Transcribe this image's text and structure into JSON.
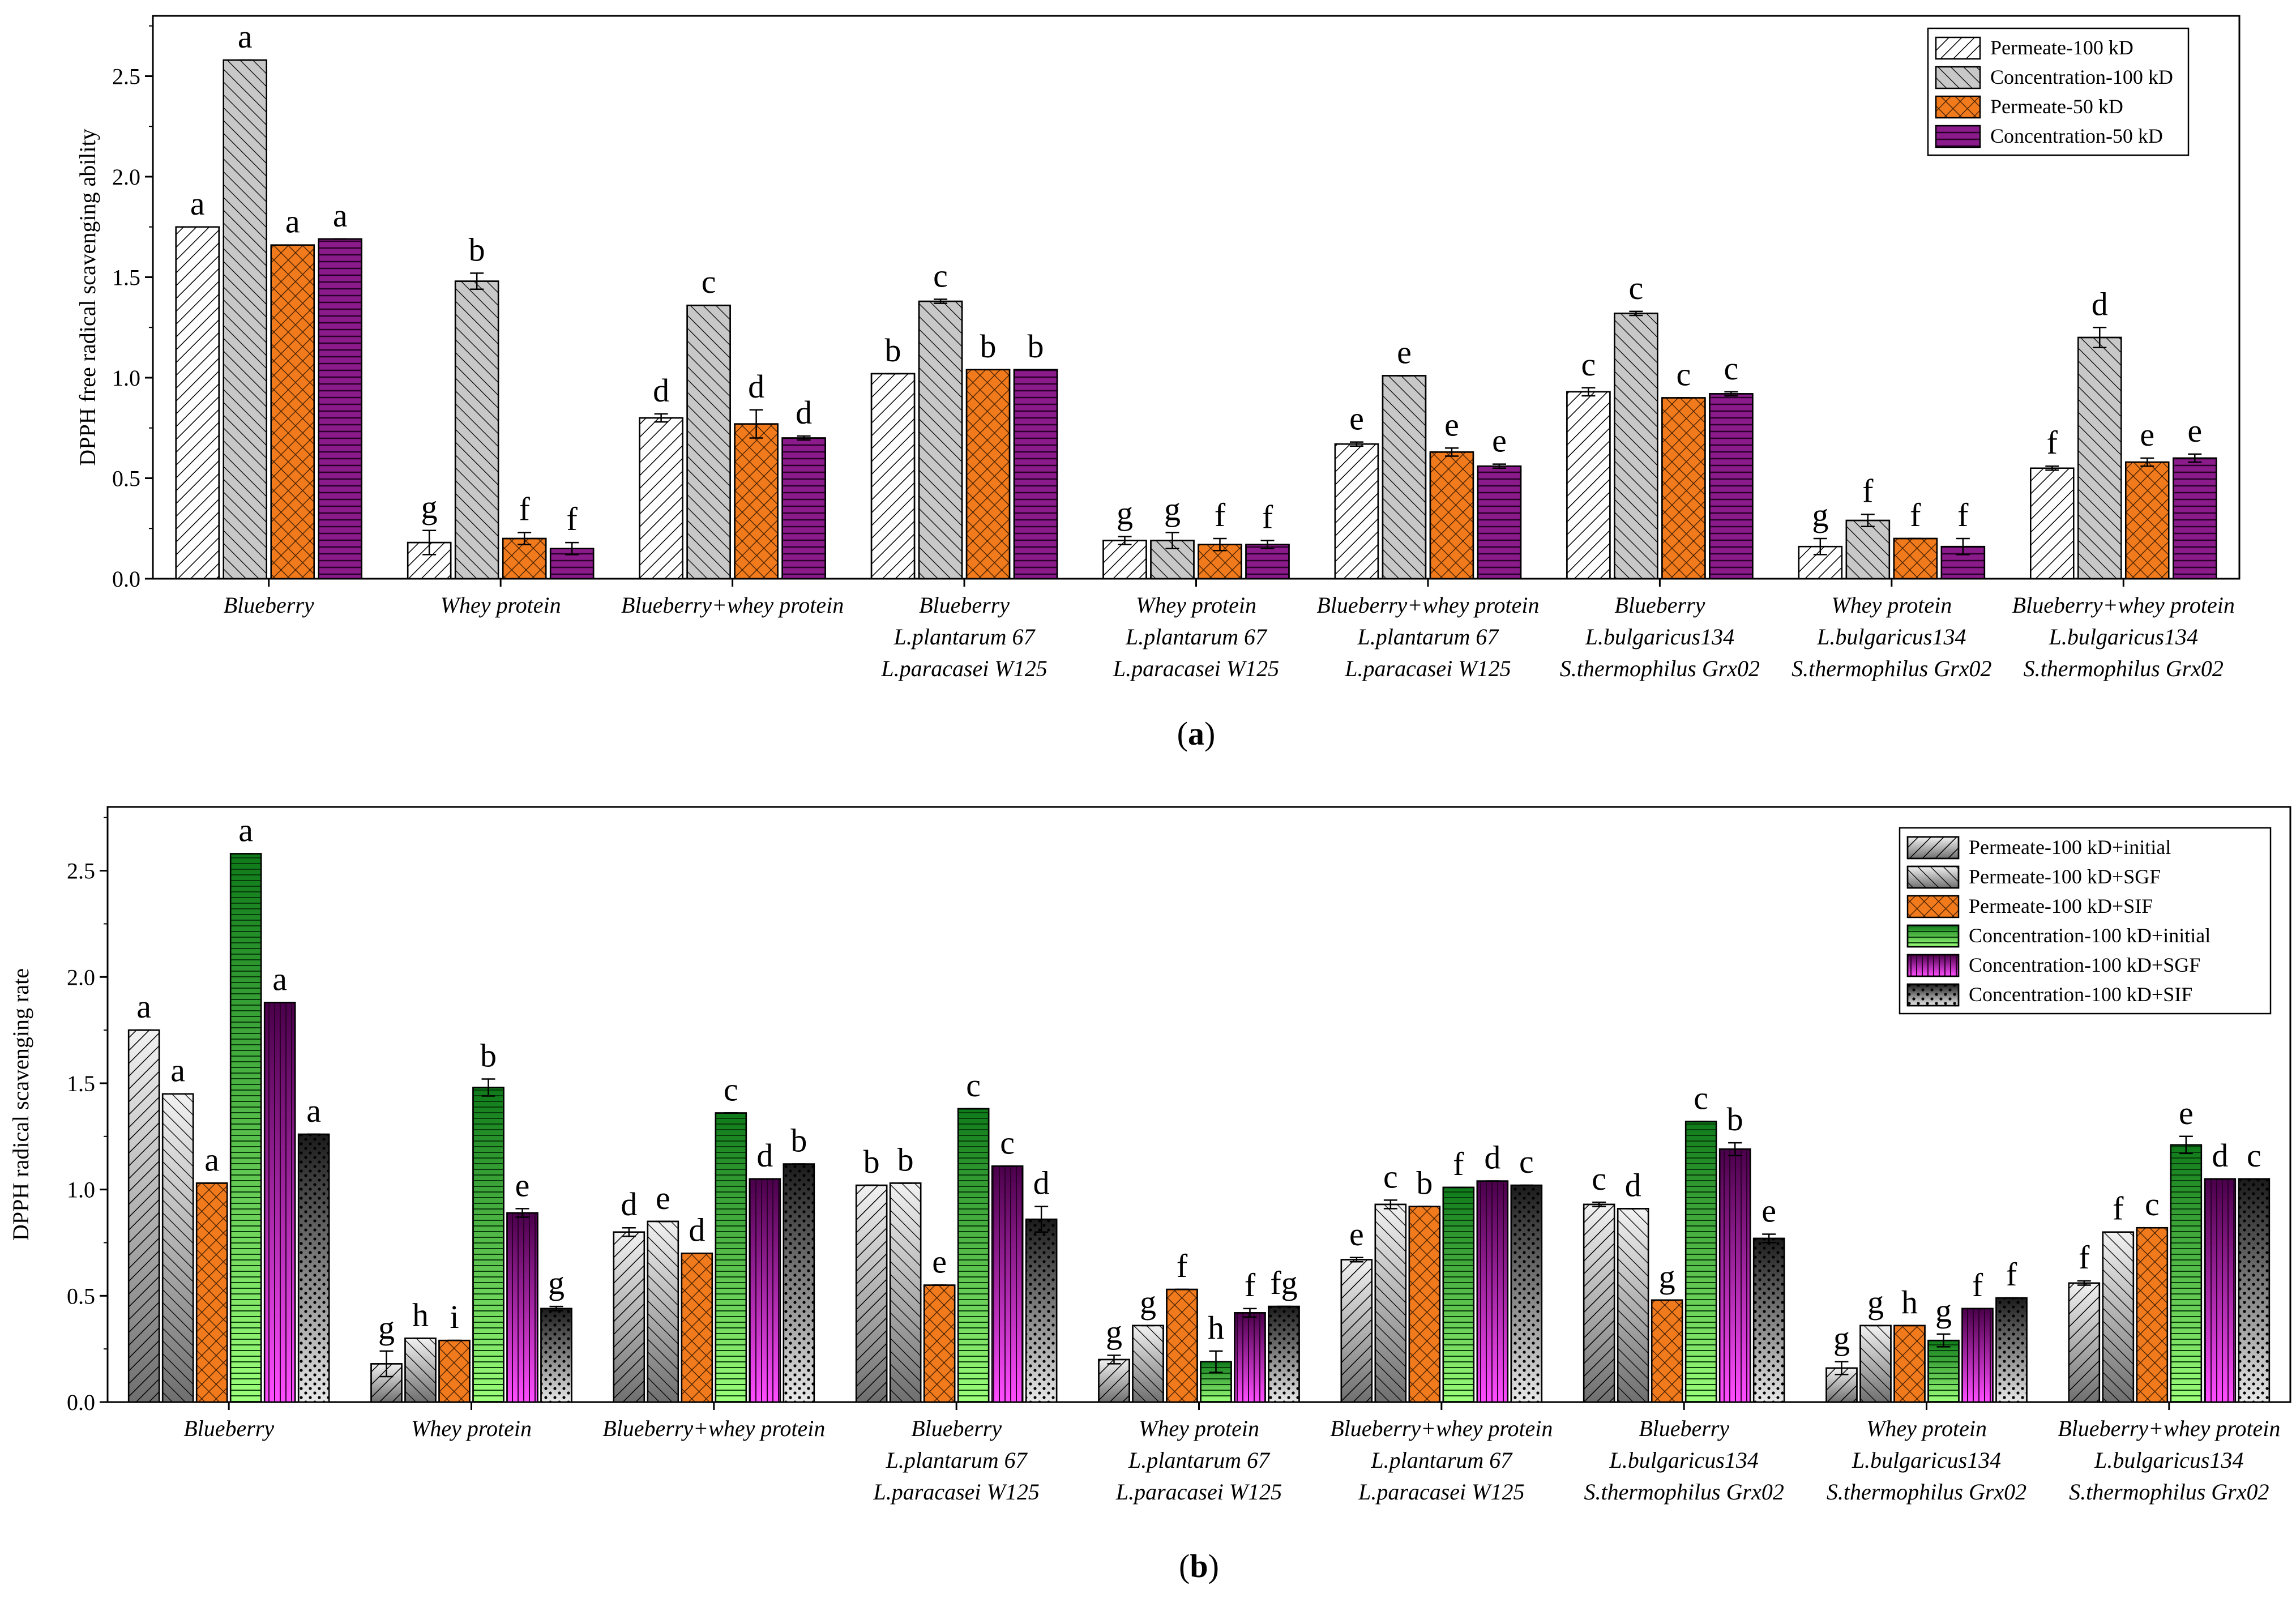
{
  "chart_data": [
    {
      "type": "bar",
      "panel_label": "a",
      "ylabel": "DPPH free radical scavenging ability",
      "xlabel": "",
      "ylim": [
        0,
        2.8
      ],
      "yticks": [
        "0.0",
        "0.5",
        "1.0",
        "1.5",
        "2.0",
        "2.5"
      ],
      "legend_position": "top-right",
      "categories": [
        [
          "Blueberry"
        ],
        [
          "Whey protein"
        ],
        [
          "Blueberry+whey protein"
        ],
        [
          "Blueberry",
          "L.plantarum 67",
          "L.paracasei W125"
        ],
        [
          "Whey protein",
          "L.plantarum 67",
          "L.paracasei W125"
        ],
        [
          "Blueberry+whey protein",
          "L.plantarum 67",
          "L.paracasei W125"
        ],
        [
          "Blueberry",
          "L.bulgaricus134",
          "S.thermophilus Grx02"
        ],
        [
          "Whey protein",
          "L.bulgaricus134",
          "S.thermophilus Grx02"
        ],
        [
          "Blueberry+whey protein",
          "L.bulgaricus134",
          "S.thermophilus Grx02"
        ]
      ],
      "series": [
        {
          "name": "Permeate-100 kD",
          "pattern": "hatch-white",
          "values": [
            1.75,
            0.18,
            0.8,
            1.02,
            0.19,
            0.67,
            0.93,
            0.16,
            0.55
          ],
          "errors": [
            0,
            0.06,
            0.02,
            0,
            0.02,
            0.01,
            0.02,
            0.04,
            0.01
          ],
          "letters": [
            "a",
            "g",
            "d",
            "b",
            "g",
            "e",
            "c",
            "g",
            "f"
          ]
        },
        {
          "name": "Concentration-100 kD",
          "pattern": "hatch-gray",
          "values": [
            2.58,
            1.48,
            1.36,
            1.38,
            0.19,
            1.01,
            1.32,
            0.29,
            1.2
          ],
          "errors": [
            0,
            0.04,
            0,
            0.01,
            0.04,
            0,
            0.01,
            0.03,
            0.05
          ],
          "letters": [
            "a",
            "b",
            "c",
            "c",
            "g",
            "e",
            "c",
            "f",
            "d"
          ]
        },
        {
          "name": "Permeate-50 kD",
          "pattern": "cross-orange",
          "values": [
            1.66,
            0.2,
            0.77,
            1.04,
            0.17,
            0.63,
            0.9,
            0.2,
            0.58
          ],
          "errors": [
            0,
            0.03,
            0.07,
            0,
            0.03,
            0.02,
            0,
            0,
            0.02
          ],
          "letters": [
            "a",
            "f",
            "d",
            "b",
            "f",
            "e",
            "c",
            "f",
            "e"
          ]
        },
        {
          "name": "Concentration-50 kD",
          "pattern": "stripe-purple",
          "values": [
            1.69,
            0.15,
            0.7,
            1.04,
            0.17,
            0.56,
            0.92,
            0.16,
            0.6
          ],
          "errors": [
            0,
            0.03,
            0.01,
            0,
            0.02,
            0.01,
            0.01,
            0.04,
            0.02
          ],
          "letters": [
            "a",
            "f",
            "d",
            "b",
            "f",
            "e",
            "c",
            "f",
            "e"
          ]
        }
      ]
    },
    {
      "type": "bar",
      "panel_label": "b",
      "ylabel": "DPPH radical scavenging rate",
      "xlabel": "",
      "ylim": [
        0,
        2.8
      ],
      "yticks": [
        "0.0",
        "0.5",
        "1.0",
        "1.5",
        "2.0",
        "2.5"
      ],
      "legend_position": "top-right",
      "categories": [
        [
          "Blueberry"
        ],
        [
          "Whey protein"
        ],
        [
          "Blueberry+whey protein"
        ],
        [
          "Blueberry",
          "L.plantarum 67",
          "L.paracasei W125"
        ],
        [
          "Whey protein",
          "L.plantarum 67",
          "L.paracasei W125"
        ],
        [
          "Blueberry+whey protein",
          "L.plantarum 67",
          "L.paracasei W125"
        ],
        [
          "Blueberry",
          "L.bulgaricus134",
          "S.thermophilus Grx02"
        ],
        [
          "Whey protein",
          "L.bulgaricus134",
          "S.thermophilus Grx02"
        ],
        [
          "Blueberry+whey protein",
          "L.bulgaricus134",
          "S.thermophilus Grx02"
        ]
      ],
      "series": [
        {
          "name": "Permeate-100 kD+initial",
          "pattern": "grad-gray-hatch-white",
          "values": [
            1.75,
            0.18,
            0.8,
            1.02,
            0.2,
            0.67,
            0.93,
            0.16,
            0.56
          ],
          "errors": [
            0,
            0.06,
            0.02,
            0,
            0.02,
            0.01,
            0.01,
            0.03,
            0.01
          ],
          "letters": [
            "a",
            "g",
            "d",
            "b",
            "g",
            "e",
            "c",
            "g",
            "f"
          ]
        },
        {
          "name": "Permeate-100 kD+SGF",
          "pattern": "grad-gray-hatch-gray",
          "values": [
            1.45,
            0.3,
            0.85,
            1.03,
            0.36,
            0.93,
            0.91,
            0.36,
            0.8
          ],
          "errors": [
            0,
            0,
            0,
            0,
            0,
            0.02,
            0,
            0,
            0
          ],
          "letters": [
            "a",
            "h",
            "e",
            "b",
            "g",
            "c",
            "d",
            "g",
            "f"
          ]
        },
        {
          "name": "Permeate-100 kD+SIF",
          "pattern": "cross-orange",
          "values": [
            1.03,
            0.29,
            0.7,
            0.55,
            0.53,
            0.92,
            0.48,
            0.36,
            0.82
          ],
          "errors": [
            0,
            0,
            0,
            0,
            0,
            0,
            0,
            0,
            0
          ],
          "letters": [
            "a",
            "i",
            "d",
            "e",
            "f",
            "b",
            "g",
            "h",
            "c"
          ]
        },
        {
          "name": "Concentration-100 kD+initial",
          "pattern": "grad-green",
          "values": [
            2.58,
            1.48,
            1.36,
            1.38,
            0.19,
            1.01,
            1.32,
            0.29,
            1.21
          ],
          "errors": [
            0,
            0.04,
            0,
            0,
            0.05,
            0,
            0,
            0.03,
            0.04
          ],
          "letters": [
            "a",
            "b",
            "c",
            "c",
            "h",
            "f",
            "c",
            "g",
            "e"
          ]
        },
        {
          "name": "Concentration-100 kD+SGF",
          "pattern": "grad-purple",
          "values": [
            1.88,
            0.89,
            1.05,
            1.11,
            0.42,
            1.04,
            1.19,
            0.44,
            1.05
          ],
          "errors": [
            0,
            0.02,
            0,
            0,
            0.02,
            0,
            0.03,
            0,
            0
          ],
          "letters": [
            "a",
            "e",
            "d",
            "c",
            "f",
            "d",
            "b",
            "f",
            "d"
          ]
        },
        {
          "name": "Concentration-100 kD+SIF",
          "pattern": "grad-dots",
          "values": [
            1.26,
            0.44,
            1.12,
            0.86,
            0.45,
            1.02,
            0.77,
            0.49,
            1.05
          ],
          "errors": [
            0,
            0.01,
            0,
            0.06,
            0,
            0,
            0.02,
            0,
            0
          ],
          "letters": [
            "a",
            "g",
            "b",
            "d",
            "fg",
            "c",
            "e",
            "f",
            "c"
          ]
        }
      ]
    }
  ]
}
